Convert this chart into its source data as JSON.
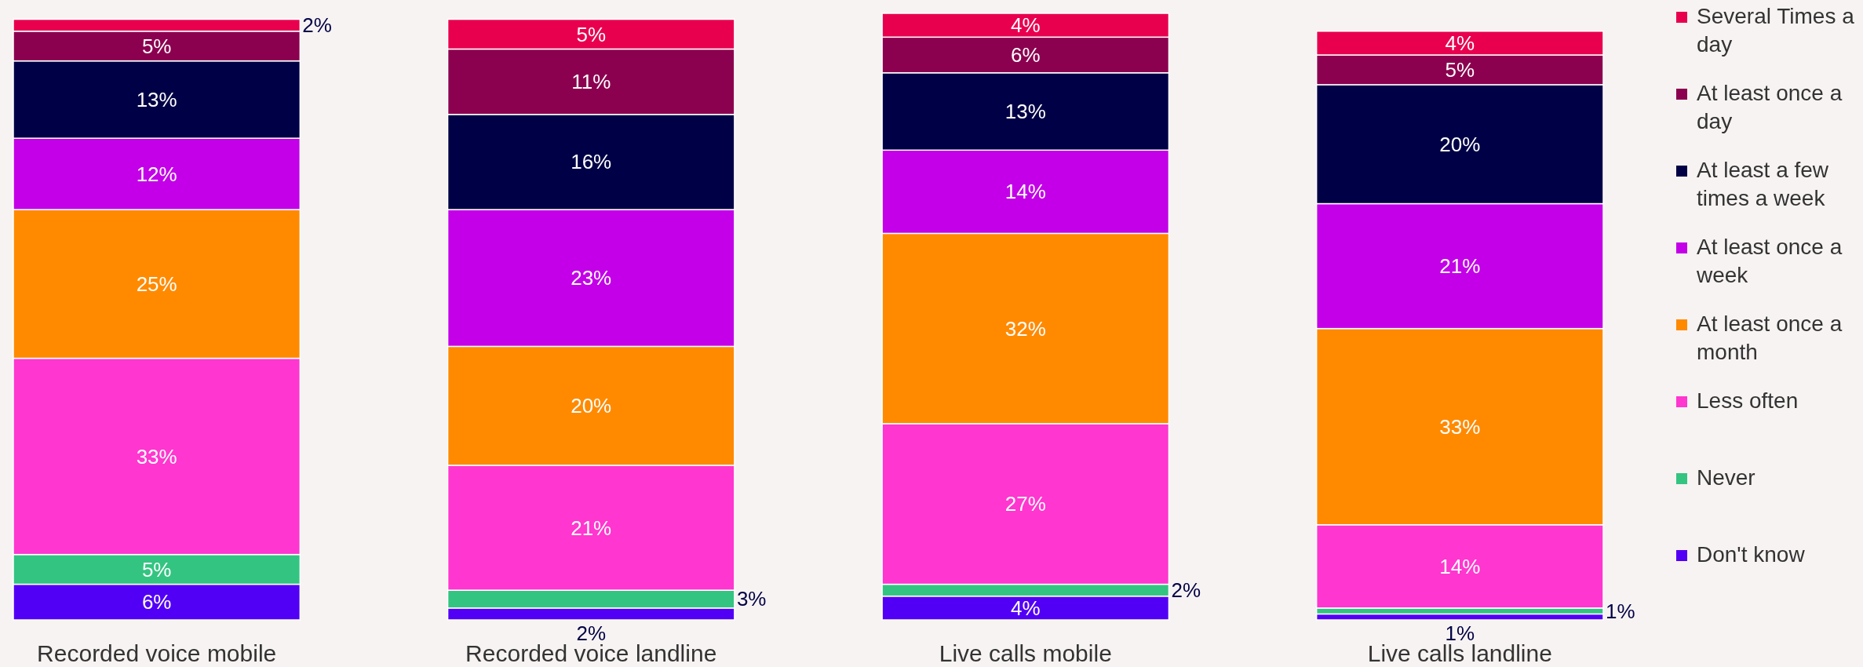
{
  "chart_data": {
    "type": "bar",
    "stacked": true,
    "legend": "right",
    "categories": [
      "Recorded voice mobile",
      "Recorded voice landline",
      "Live calls mobile",
      "Live calls landline"
    ],
    "series": [
      {
        "name": "Don't know",
        "color": "#5200f5",
        "values": [
          6,
          2,
          4,
          1
        ],
        "value_labels": [
          "6%",
          "2%",
          "4%",
          "1%"
        ]
      },
      {
        "name": "Never",
        "color": "#33c481",
        "values": [
          5,
          3,
          2,
          1
        ],
        "value_labels": [
          "5%",
          "3%",
          "2%",
          "1%"
        ]
      },
      {
        "name": "Less often",
        "color": "#ff36cf",
        "values": [
          33,
          21,
          27,
          14
        ],
        "value_labels": [
          "33%",
          "21%",
          "27%",
          "14%"
        ]
      },
      {
        "name": "At least once a month",
        "color": "#ff8a00",
        "values": [
          25,
          20,
          32,
          33
        ],
        "value_labels": [
          "25%",
          "20%",
          "32%",
          "33%"
        ]
      },
      {
        "name": "At least once a week",
        "color": "#c300e8",
        "values": [
          12,
          23,
          14,
          21
        ],
        "value_labels": [
          "12%",
          "23%",
          "14%",
          "21%"
        ]
      },
      {
        "name": "At least a few times a week",
        "color": "#000046",
        "values": [
          13,
          16,
          13,
          20
        ],
        "value_labels": [
          "13%",
          "16%",
          "13%",
          "20%"
        ]
      },
      {
        "name": "At least once a day",
        "color": "#8b004f",
        "values": [
          5,
          11,
          6,
          5
        ],
        "value_labels": [
          "5%",
          "11%",
          "6%",
          "5%"
        ]
      },
      {
        "name": "Several Times a day",
        "color": "#e8004f",
        "values": [
          2,
          5,
          4,
          4
        ],
        "value_labels": [
          "2%",
          "5%",
          "4%",
          "4%"
        ]
      }
    ]
  }
}
